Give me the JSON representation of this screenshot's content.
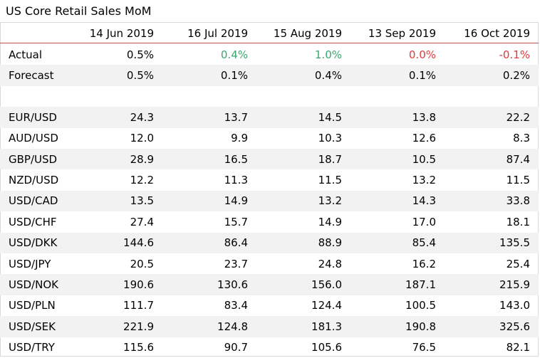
{
  "chart_data": {
    "type": "table",
    "title": "US Core Retail Sales MoM",
    "columns": [
      "14 Jun 2019",
      "16 Jul 2019",
      "15 Aug 2019",
      "13 Sep 2019",
      "16 Oct 2019"
    ],
    "release_rows": [
      {
        "label": "Actual",
        "values": [
          "0.5%",
          "0.4%",
          "1.0%",
          "0.0%",
          "-0.1%"
        ],
        "colors": [
          "#000000",
          "#3aa76d",
          "#3aa76d",
          "#e0393e",
          "#e0393e"
        ]
      },
      {
        "label": "Forecast",
        "values": [
          "0.5%",
          "0.1%",
          "0.4%",
          "0.1%",
          "0.2%"
        ],
        "colors": [
          "#000000",
          "#000000",
          "#000000",
          "#000000",
          "#000000"
        ]
      }
    ],
    "pair_rows": [
      {
        "label": "EUR/USD",
        "values": [
          "24.3",
          "13.7",
          "14.5",
          "13.8",
          "22.2"
        ]
      },
      {
        "label": "AUD/USD",
        "values": [
          "12.0",
          "9.9",
          "10.3",
          "12.6",
          "8.3"
        ]
      },
      {
        "label": "GBP/USD",
        "values": [
          "28.9",
          "16.5",
          "18.7",
          "10.5",
          "87.4"
        ]
      },
      {
        "label": "NZD/USD",
        "values": [
          "12.2",
          "11.3",
          "11.5",
          "13.2",
          "11.5"
        ]
      },
      {
        "label": "USD/CAD",
        "values": [
          "13.5",
          "14.9",
          "13.2",
          "14.3",
          "33.8"
        ]
      },
      {
        "label": "USD/CHF",
        "values": [
          "27.4",
          "15.7",
          "14.9",
          "17.0",
          "18.1"
        ]
      },
      {
        "label": "USD/DKK",
        "values": [
          "144.6",
          "86.4",
          "88.9",
          "85.4",
          "135.5"
        ]
      },
      {
        "label": "USD/JPY",
        "values": [
          "20.5",
          "23.7",
          "24.8",
          "16.2",
          "25.4"
        ]
      },
      {
        "label": "USD/NOK",
        "values": [
          "190.6",
          "130.6",
          "156.0",
          "187.1",
          "215.9"
        ]
      },
      {
        "label": "USD/PLN",
        "values": [
          "111.7",
          "83.4",
          "124.4",
          "100.5",
          "143.0"
        ]
      },
      {
        "label": "USD/SEK",
        "values": [
          "221.9",
          "124.8",
          "181.3",
          "190.8",
          "325.6"
        ]
      },
      {
        "label": "USD/TRY",
        "values": [
          "115.6",
          "90.7",
          "105.6",
          "76.5",
          "82.1"
        ]
      }
    ],
    "colors": {
      "positive": "#3aa76d",
      "negative": "#e0393e",
      "header_rule": "#c0504d",
      "band": "#f2f2f2"
    }
  }
}
